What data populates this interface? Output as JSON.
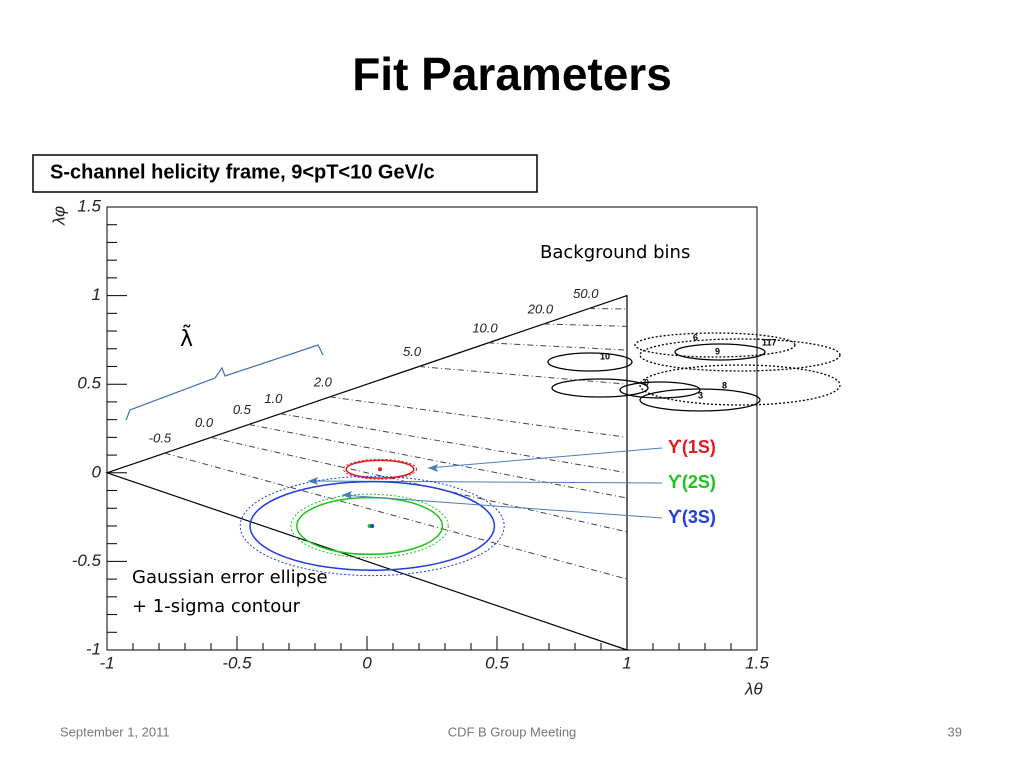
{
  "slide": {
    "title": "Fit Parameters",
    "footer": {
      "date": "September 1, 2011",
      "event": "CDF B Group Meeting",
      "page": "39"
    }
  },
  "chart_data": {
    "type": "ellipse",
    "title": "S-channel helicity frame, 9<pT<10 GeV/c",
    "x_label": "λθ",
    "y_label": "λφ",
    "xlim": [
      -1,
      1.5
    ],
    "ylim": [
      -1,
      1.5
    ],
    "xticks": [
      -1,
      -0.5,
      0,
      0.5,
      1,
      1.5
    ],
    "yticks": [
      -1,
      -0.5,
      0,
      0.5,
      1,
      1.5
    ],
    "contours": [
      -0.5,
      {
        "value": 0,
        "label": "0.0"
      },
      0.5,
      {
        "value": 1,
        "label": "1.0"
      },
      {
        "value": 2,
        "label": "2.0"
      },
      {
        "value": 5,
        "label": "5.0"
      },
      {
        "value": 10,
        "label": "10.0"
      },
      {
        "value": 20,
        "label": "20.0"
      },
      {
        "value": 50,
        "label": "50.0"
      }
    ],
    "series": [
      {
        "name": "ϒ(1S)",
        "color": "#e31a1c",
        "x": [
          0.05
        ],
        "values": [
          0.02
        ],
        "x_error": [
          0.13
        ],
        "y_error": [
          0.05
        ]
      },
      {
        "name": "ϒ(2S)",
        "color": "#1ec31e",
        "x": [
          0.01
        ],
        "values": [
          -0.3
        ],
        "x_error": [
          0.28
        ],
        "y_error": [
          0.16
        ]
      },
      {
        "name": "ϒ(3S)",
        "color": "#1f3ddb",
        "x": [
          0.02
        ],
        "values": [
          -0.3
        ],
        "x_error": [
          0.47
        ],
        "y_error": [
          0.25
        ]
      }
    ],
    "annotations": {
      "background": "Background bins",
      "lambda_tilde": "λ̃",
      "error_note": [
        "Gaussian error ellipse",
        "+ 1-sigma contour"
      ],
      "bin_labels": [
        "6",
        "117",
        "10",
        "9",
        "0",
        "3",
        "8"
      ]
    }
  }
}
